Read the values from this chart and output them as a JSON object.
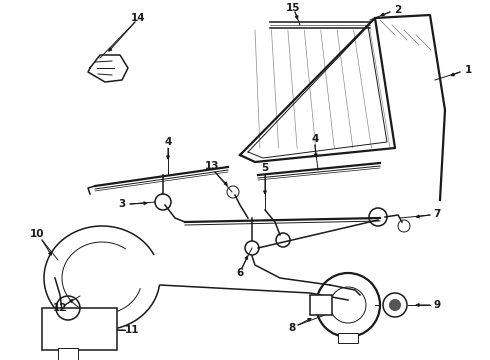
{
  "bg_color": "#ffffff",
  "line_color": "#1a1a1a",
  "fig_width": 4.9,
  "fig_height": 3.6,
  "dpi": 100,
  "lw_thin": 0.7,
  "lw_med": 1.1,
  "lw_thick": 1.6,
  "fs_label": 7.5
}
